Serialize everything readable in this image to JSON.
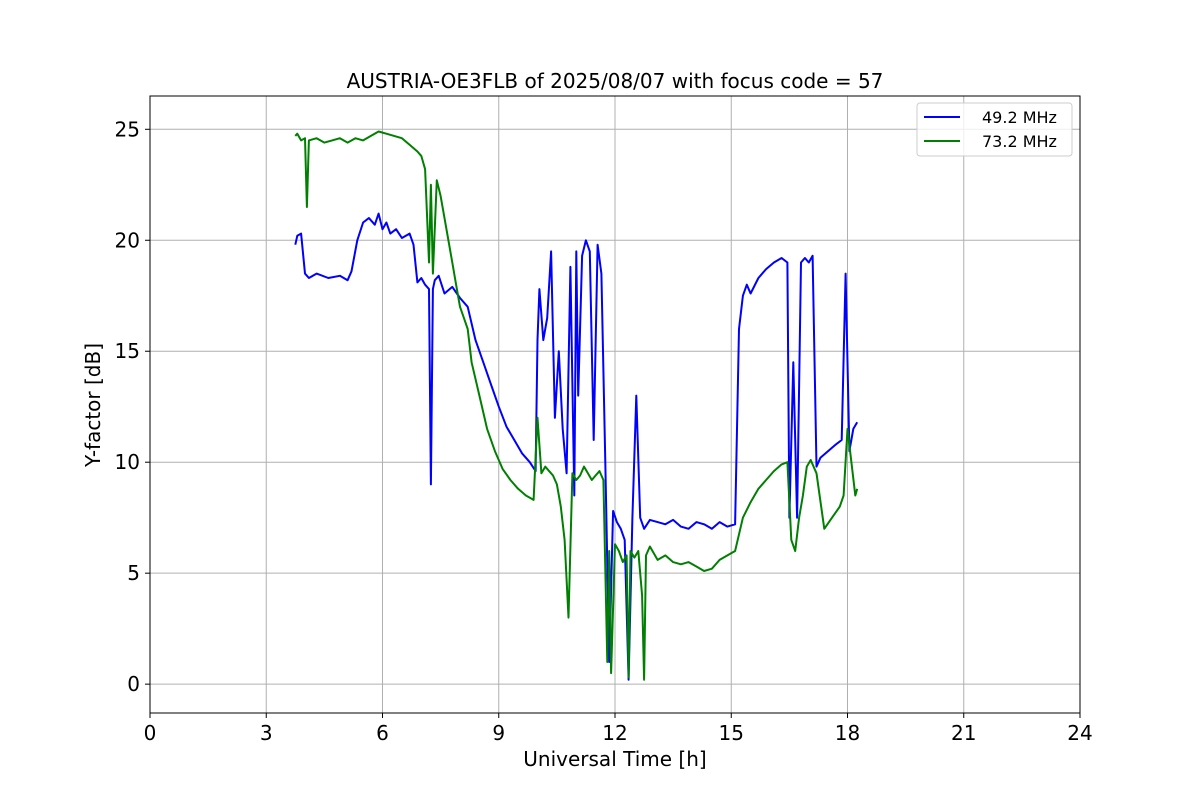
{
  "chart_data": {
    "type": "line",
    "title": "AUSTRIA-OE3FLB of 2025/08/07 with focus code = 57",
    "xlabel": "Universal Time [h]",
    "ylabel": "Y-factor [dB]",
    "xlim": [
      0,
      24
    ],
    "ylim": [
      -1.3,
      26.5
    ],
    "xticks": [
      0,
      3,
      6,
      9,
      12,
      15,
      18,
      21,
      24
    ],
    "yticks": [
      0,
      5,
      10,
      15,
      20,
      25
    ],
    "grid": true,
    "legend_position": "top-right",
    "series": [
      {
        "name": "49.2 MHz",
        "color": "#0000ff",
        "x": [
          3.75,
          3.8,
          3.9,
          4.0,
          4.1,
          4.3,
          4.6,
          4.9,
          5.1,
          5.2,
          5.35,
          5.5,
          5.65,
          5.8,
          5.9,
          6.0,
          6.1,
          6.2,
          6.35,
          6.5,
          6.7,
          6.8,
          6.9,
          7.0,
          7.1,
          7.2,
          7.25,
          7.3,
          7.35,
          7.45,
          7.6,
          7.8,
          8.0,
          8.2,
          8.4,
          8.6,
          8.8,
          9.0,
          9.2,
          9.4,
          9.6,
          9.8,
          9.95,
          10.0,
          10.05,
          10.15,
          10.25,
          10.35,
          10.45,
          10.55,
          10.65,
          10.75,
          10.85,
          10.95,
          11.0,
          11.05,
          11.15,
          11.25,
          11.35,
          11.45,
          11.55,
          11.65,
          11.75,
          11.85,
          11.95,
          12.05,
          12.15,
          12.25,
          12.35,
          12.45,
          12.55,
          12.65,
          12.75,
          12.9,
          13.1,
          13.3,
          13.5,
          13.7,
          13.9,
          14.1,
          14.3,
          14.5,
          14.7,
          14.9,
          15.1,
          15.2,
          15.3,
          15.4,
          15.5,
          15.7,
          15.9,
          16.1,
          16.3,
          16.45,
          16.5,
          16.6,
          16.7,
          16.8,
          16.9,
          17.0,
          17.1,
          17.2,
          17.3,
          17.5,
          17.7,
          17.85,
          17.95,
          18.05,
          18.15,
          18.25
        ],
        "y": [
          19.8,
          20.2,
          20.3,
          18.5,
          18.3,
          18.5,
          18.3,
          18.4,
          18.2,
          18.6,
          20.0,
          20.8,
          21.0,
          20.7,
          21.2,
          20.5,
          20.8,
          20.3,
          20.5,
          20.1,
          20.3,
          19.8,
          18.1,
          18.3,
          18.0,
          17.8,
          9.0,
          17.8,
          18.2,
          18.4,
          17.6,
          17.9,
          17.4,
          17.0,
          15.5,
          14.5,
          13.5,
          12.5,
          11.6,
          11.0,
          10.4,
          10.0,
          9.6,
          15.5,
          17.8,
          15.5,
          16.5,
          19.5,
          12.0,
          15.0,
          11.5,
          9.5,
          18.8,
          8.5,
          19.5,
          13.0,
          19.3,
          20.0,
          19.5,
          11.0,
          19.8,
          18.5,
          10.0,
          1.0,
          7.8,
          7.3,
          7.0,
          6.5,
          0.2,
          7.5,
          13.0,
          7.5,
          7.0,
          7.4,
          7.3,
          7.2,
          7.4,
          7.1,
          7.0,
          7.3,
          7.2,
          7.0,
          7.3,
          7.1,
          7.2,
          16.0,
          17.5,
          18.0,
          17.6,
          18.3,
          18.7,
          19.0,
          19.2,
          19.0,
          7.5,
          14.5,
          7.5,
          19.0,
          19.2,
          19.0,
          19.3,
          9.8,
          10.2,
          10.5,
          10.8,
          11.0,
          18.5,
          10.5,
          11.5,
          11.8
        ],
        "label": "49.2 MHz"
      },
      {
        "name": "73.2 MHz",
        "color": "#008000",
        "x": [
          3.75,
          3.8,
          3.9,
          4.0,
          4.05,
          4.1,
          4.3,
          4.5,
          4.7,
          4.9,
          5.1,
          5.3,
          5.5,
          5.7,
          5.9,
          6.1,
          6.3,
          6.5,
          6.7,
          6.9,
          7.0,
          7.1,
          7.2,
          7.25,
          7.3,
          7.4,
          7.5,
          7.6,
          7.7,
          7.8,
          7.9,
          8.0,
          8.1,
          8.2,
          8.3,
          8.5,
          8.7,
          8.9,
          9.1,
          9.3,
          9.5,
          9.7,
          9.9,
          10.0,
          10.1,
          10.2,
          10.3,
          10.4,
          10.5,
          10.6,
          10.7,
          10.8,
          10.9,
          11.0,
          11.1,
          11.2,
          11.3,
          11.4,
          11.5,
          11.6,
          11.7,
          11.8,
          11.85,
          11.9,
          12.0,
          12.1,
          12.2,
          12.3,
          12.35,
          12.4,
          12.5,
          12.6,
          12.7,
          12.75,
          12.8,
          12.9,
          13.1,
          13.3,
          13.5,
          13.7,
          13.9,
          14.1,
          14.3,
          14.5,
          14.7,
          14.9,
          15.1,
          15.3,
          15.5,
          15.7,
          15.9,
          16.1,
          16.3,
          16.45,
          16.55,
          16.65,
          16.75,
          16.85,
          16.95,
          17.05,
          17.2,
          17.4,
          17.6,
          17.8,
          17.9,
          18.0,
          18.1,
          18.2,
          18.25
        ],
        "y": [
          24.7,
          24.8,
          24.5,
          24.6,
          21.5,
          24.5,
          24.6,
          24.4,
          24.5,
          24.6,
          24.4,
          24.6,
          24.5,
          24.7,
          24.9,
          24.8,
          24.7,
          24.6,
          24.3,
          24.0,
          23.8,
          23.2,
          19.0,
          22.5,
          18.5,
          22.7,
          22.0,
          21.0,
          20.0,
          19.0,
          18.0,
          17.0,
          16.5,
          16.0,
          14.5,
          13.0,
          11.5,
          10.5,
          9.7,
          9.2,
          8.8,
          8.5,
          8.3,
          12.0,
          9.5,
          9.8,
          9.6,
          9.4,
          9.0,
          8.0,
          6.5,
          3.0,
          9.5,
          9.2,
          9.4,
          9.8,
          9.5,
          9.2,
          9.4,
          9.6,
          9.2,
          1.0,
          6.0,
          0.5,
          6.3,
          6.0,
          5.5,
          5.8,
          0.3,
          6.0,
          5.7,
          6.0,
          4.0,
          0.2,
          5.8,
          6.2,
          5.6,
          5.8,
          5.5,
          5.4,
          5.5,
          5.3,
          5.1,
          5.2,
          5.6,
          5.8,
          6.0,
          7.5,
          8.2,
          8.8,
          9.2,
          9.6,
          9.9,
          10.0,
          6.5,
          6.0,
          7.5,
          8.5,
          9.8,
          10.1,
          9.5,
          7.0,
          7.5,
          8.0,
          8.5,
          11.5,
          10.0,
          8.5,
          8.8
        ],
        "label": "73.2 MHz"
      }
    ]
  }
}
